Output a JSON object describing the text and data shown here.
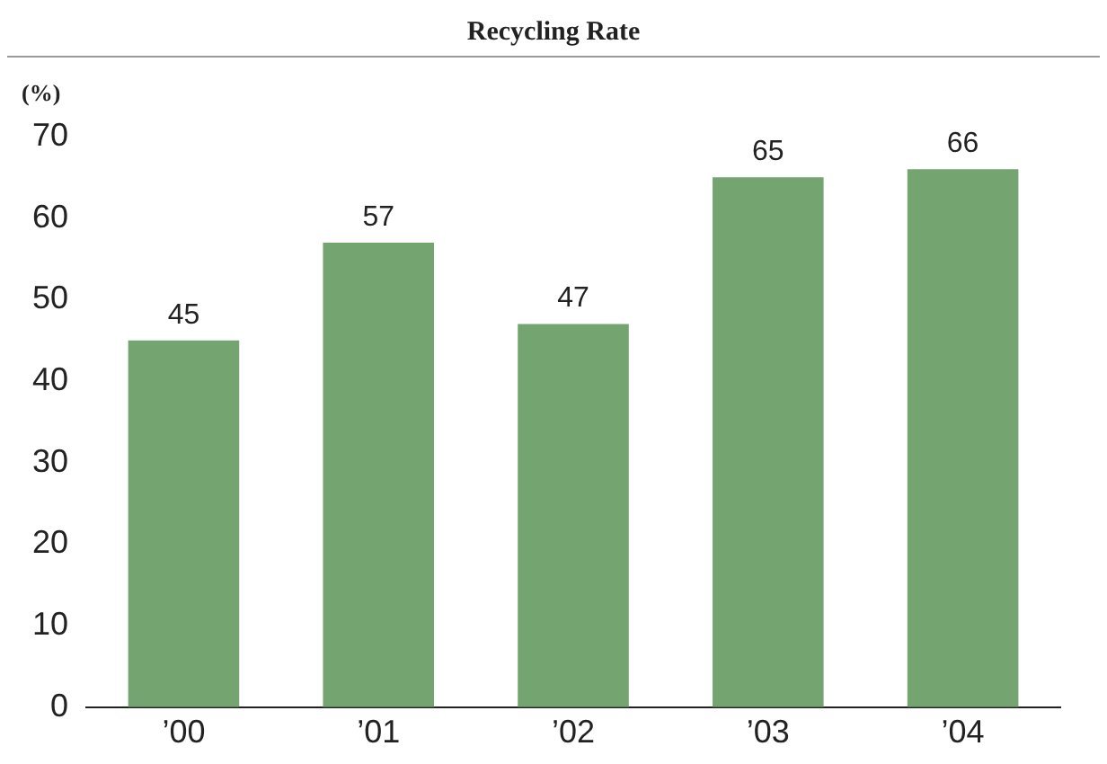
{
  "chart_data": {
    "type": "bar",
    "title": "Recycling Rate",
    "ylabel": "(%)",
    "categories": [
      "’00",
      "’01",
      "’02",
      "’03",
      "’04"
    ],
    "values": [
      45,
      57,
      47,
      65,
      66
    ],
    "color": "#74a571",
    "ylim": [
      0,
      70
    ],
    "yticks": [
      0,
      10,
      20,
      30,
      40,
      50,
      60,
      70
    ],
    "grid": false,
    "data_labels": true
  }
}
